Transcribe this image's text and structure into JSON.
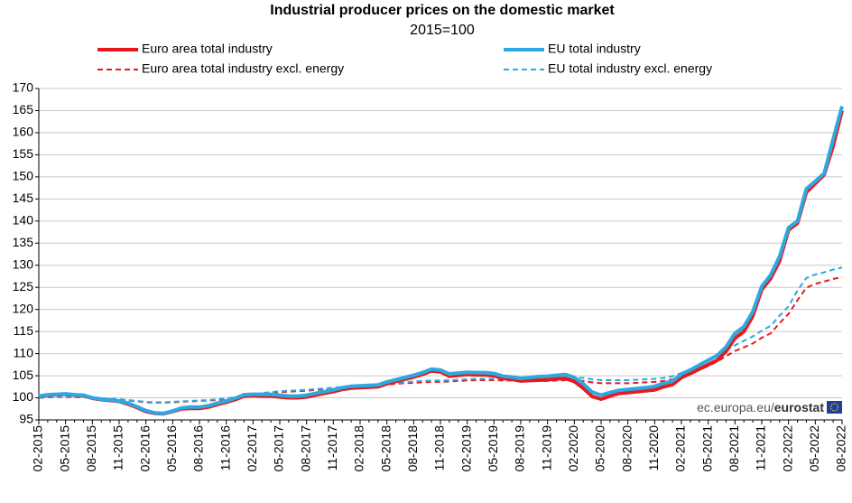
{
  "chart_data": {
    "type": "line",
    "title": "Industrial producer prices on the domestic market",
    "subtitle": "2015=100",
    "watermark": {
      "site": "ec.europa.eu/",
      "brand": "eurostat"
    },
    "categories": [
      "02-2015",
      null,
      null,
      "05-2015",
      null,
      null,
      "08-2015",
      null,
      null,
      "11-2015",
      null,
      null,
      "02-2016",
      null,
      null,
      "05-2016",
      null,
      null,
      "08-2016",
      null,
      null,
      "11-2016",
      null,
      null,
      "02-2017",
      null,
      null,
      "05-2017",
      null,
      null,
      "08-2017",
      null,
      null,
      "11-2017",
      null,
      null,
      "02-2018",
      null,
      null,
      "05-2018",
      null,
      null,
      "08-2018",
      null,
      null,
      "11-2018",
      null,
      null,
      "02-2019",
      null,
      null,
      "05-2019",
      null,
      null,
      "08-2019",
      null,
      null,
      "11-2019",
      null,
      null,
      "02-2020",
      null,
      null,
      "05-2020",
      null,
      null,
      "08-2020",
      null,
      null,
      "11-2020",
      null,
      null,
      "02-2021",
      null,
      null,
      "05-2021",
      null,
      null,
      "08-2021",
      null,
      null,
      "11-2021",
      null,
      null,
      "02-2022",
      null,
      null,
      "05-2022",
      null,
      null,
      "08-2022"
    ],
    "series": [
      {
        "name": "Euro area total industry",
        "color": "#e8191c",
        "dashed": false,
        "values": [
          100.3,
          100.6,
          100.7,
          100.8,
          100.6,
          100.5,
          99.9,
          99.6,
          99.4,
          99.2,
          98.6,
          97.8,
          96.9,
          96.5,
          96.4,
          96.9,
          97.5,
          97.6,
          97.6,
          97.9,
          98.5,
          99.0,
          99.6,
          100.4,
          100.5,
          100.4,
          100.4,
          100.2,
          100.0,
          100.0,
          100.2,
          100.6,
          101.0,
          101.4,
          101.9,
          102.2,
          102.3,
          102.4,
          102.5,
          103.2,
          103.7,
          104.2,
          104.7,
          105.3,
          106.1,
          105.9,
          104.9,
          105.1,
          105.3,
          105.2,
          105.2,
          105.0,
          104.4,
          104.2,
          103.8,
          103.9,
          104.0,
          104.1,
          104.3,
          104.4,
          103.7,
          102.2,
          100.3,
          99.7,
          100.4,
          101.0,
          101.2,
          101.4,
          101.6,
          101.8,
          102.5,
          103.0,
          104.6,
          105.5,
          106.5,
          107.5,
          108.5,
          110.5,
          113.5,
          115.0,
          118.5,
          124.5,
          127.0,
          131.0,
          138.0,
          139.5,
          146.5,
          148.5,
          150.5,
          157.0,
          165.0
        ]
      },
      {
        "name": "EU total industry",
        "color": "#2ba9e0",
        "dashed": false,
        "values": [
          100.4,
          100.7,
          100.8,
          100.9,
          100.7,
          100.6,
          100.0,
          99.7,
          99.5,
          99.3,
          98.8,
          98.0,
          97.1,
          96.6,
          96.5,
          97.0,
          97.7,
          97.9,
          97.9,
          98.2,
          98.8,
          99.3,
          99.9,
          100.7,
          100.8,
          100.8,
          100.8,
          100.6,
          100.4,
          100.4,
          100.6,
          101.0,
          101.4,
          101.8,
          102.3,
          102.6,
          102.7,
          102.8,
          102.9,
          103.6,
          104.1,
          104.6,
          105.1,
          105.7,
          106.5,
          106.3,
          105.4,
          105.6,
          105.8,
          105.7,
          105.7,
          105.5,
          104.9,
          104.7,
          104.4,
          104.6,
          104.8,
          104.9,
          105.1,
          105.3,
          104.6,
          103.2,
          101.3,
          100.6,
          101.2,
          101.7,
          101.9,
          102.1,
          102.3,
          102.6,
          103.3,
          103.8,
          105.4,
          106.3,
          107.4,
          108.5,
          109.6,
          111.5,
          114.6,
          116.1,
          119.5,
          125.2,
          127.8,
          132.0,
          138.5,
          140.0,
          147.3,
          149.0,
          150.8,
          158.5,
          166.0
        ]
      },
      {
        "name": "Euro area total industry excl. energy",
        "color": "#e8191c",
        "dashed": true,
        "values": [
          100.0,
          100.1,
          100.2,
          100.2,
          100.2,
          100.1,
          100.0,
          99.8,
          99.7,
          99.6,
          99.4,
          99.2,
          99.0,
          98.9,
          98.9,
          99.0,
          99.1,
          99.2,
          99.3,
          99.4,
          99.5,
          99.7,
          99.9,
          100.3,
          100.6,
          100.9,
          101.1,
          101.3,
          101.4,
          101.5,
          101.6,
          101.8,
          101.9,
          102.1,
          102.3,
          102.5,
          102.6,
          102.7,
          102.8,
          103.0,
          103.2,
          103.3,
          103.4,
          103.5,
          103.6,
          103.6,
          103.7,
          103.8,
          103.9,
          104.0,
          104.0,
          104.0,
          103.9,
          103.9,
          103.8,
          103.8,
          103.8,
          103.8,
          103.9,
          104.0,
          104.0,
          103.8,
          103.5,
          103.3,
          103.3,
          103.3,
          103.3,
          103.4,
          103.5,
          103.6,
          103.8,
          104.2,
          104.8,
          105.5,
          106.3,
          107.2,
          108.2,
          109.4,
          110.6,
          111.4,
          112.3,
          113.6,
          114.6,
          116.9,
          119.0,
          122.1,
          124.9,
          125.8,
          126.3,
          126.9,
          127.3
        ]
      },
      {
        "name": "EU total industry excl. energy",
        "color": "#2ba9e0",
        "dashed": true,
        "values": [
          100.0,
          100.1,
          100.2,
          100.3,
          100.3,
          100.2,
          100.1,
          99.9,
          99.8,
          99.7,
          99.5,
          99.3,
          99.1,
          99.0,
          99.0,
          99.1,
          99.2,
          99.3,
          99.4,
          99.5,
          99.7,
          99.9,
          100.1,
          100.5,
          100.8,
          101.1,
          101.3,
          101.5,
          101.6,
          101.7,
          101.8,
          102.0,
          102.1,
          102.3,
          102.5,
          102.7,
          102.8,
          102.9,
          103.0,
          103.2,
          103.4,
          103.5,
          103.7,
          103.8,
          103.9,
          103.9,
          104.0,
          104.1,
          104.2,
          104.3,
          104.3,
          104.3,
          104.3,
          104.3,
          104.3,
          104.3,
          104.3,
          104.4,
          104.5,
          104.6,
          104.6,
          104.5,
          104.2,
          104.0,
          104.0,
          104.0,
          104.0,
          104.1,
          104.2,
          104.3,
          104.5,
          104.9,
          105.6,
          106.4,
          107.3,
          108.3,
          109.4,
          110.7,
          111.9,
          112.9,
          113.9,
          115.2,
          116.3,
          118.6,
          120.7,
          124.3,
          127.1,
          127.9,
          128.4,
          129.0,
          129.5
        ]
      }
    ],
    "ylim": [
      95,
      170
    ],
    "yticks": [
      95,
      100,
      105,
      110,
      115,
      120,
      125,
      130,
      135,
      140,
      145,
      150,
      155,
      160,
      165,
      170
    ],
    "grid": true,
    "legend": "top"
  }
}
